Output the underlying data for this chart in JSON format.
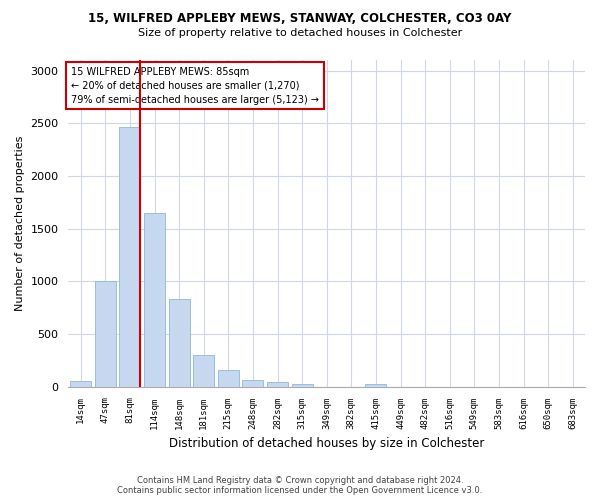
{
  "title": "15, WILFRED APPLEBY MEWS, STANWAY, COLCHESTER, CO3 0AY",
  "subtitle": "Size of property relative to detached houses in Colchester",
  "xlabel": "Distribution of detached houses by size in Colchester",
  "ylabel": "Number of detached properties",
  "footer_line1": "Contains HM Land Registry data © Crown copyright and database right 2024.",
  "footer_line2": "Contains public sector information licensed under the Open Government Licence v3.0.",
  "annotation_line1": "15 WILFRED APPLEBY MEWS: 85sqm",
  "annotation_line2": "← 20% of detached houses are smaller (1,270)",
  "annotation_line3": "79% of semi-detached houses are larger (5,123) →",
  "bar_labels": [
    "14sqm",
    "47sqm",
    "81sqm",
    "114sqm",
    "148sqm",
    "181sqm",
    "215sqm",
    "248sqm",
    "282sqm",
    "315sqm",
    "349sqm",
    "382sqm",
    "415sqm",
    "449sqm",
    "482sqm",
    "516sqm",
    "549sqm",
    "583sqm",
    "616sqm",
    "650sqm",
    "683sqm"
  ],
  "bar_values": [
    55,
    1000,
    2460,
    1650,
    830,
    300,
    155,
    60,
    40,
    30,
    0,
    0,
    30,
    0,
    0,
    0,
    0,
    0,
    0,
    0,
    0
  ],
  "bar_color": "#c5d8ef",
  "bar_edge_color": "#8fb8d8",
  "marker_bar_index": 2,
  "marker_color": "#cc0000",
  "ylim": [
    0,
    3100
  ],
  "yticks": [
    0,
    500,
    1000,
    1500,
    2000,
    2500,
    3000
  ],
  "annotation_box_color": "#cc0000",
  "bg_color": "#ffffff",
  "grid_color": "#d0d8e8"
}
